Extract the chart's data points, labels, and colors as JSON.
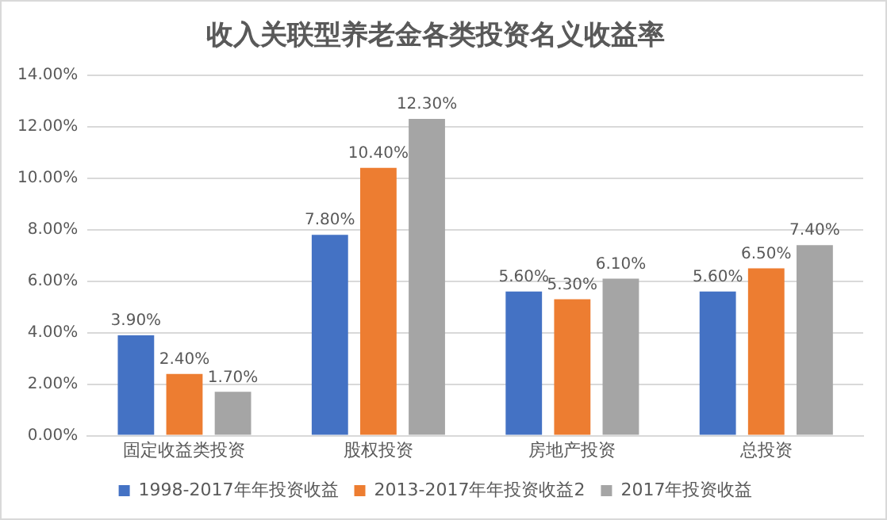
{
  "chart_data": {
    "type": "bar",
    "title": "收入关联型养老金各类投资名义收益率",
    "categories": [
      "固定收益类投资",
      "股权投资",
      "房地产投资",
      "总投资"
    ],
    "series": [
      {
        "name": "1998-2017年年投资收益",
        "color": "#4472c4",
        "values": [
          3.9,
          7.8,
          5.6,
          5.6
        ],
        "value_labels": [
          "3.90%",
          "7.80%",
          "5.60%",
          "5.60%"
        ]
      },
      {
        "name": "2013-2017年年投资收益2",
        "color": "#ed7d31",
        "values": [
          2.4,
          10.4,
          5.3,
          6.5
        ],
        "value_labels": [
          "2.40%",
          "10.40%",
          "5.30%",
          "6.50%"
        ]
      },
      {
        "name": "2017年投资收益",
        "color": "#a5a5a5",
        "values": [
          1.7,
          12.3,
          6.1,
          7.4
        ],
        "value_labels": [
          "1.70%",
          "12.30%",
          "6.10%",
          "7.40%"
        ]
      }
    ],
    "ylim": [
      0,
      14
    ],
    "yticks": [
      {
        "value": 0,
        "label": "0.00%"
      },
      {
        "value": 2,
        "label": "2.00%"
      },
      {
        "value": 4,
        "label": "4.00%"
      },
      {
        "value": 6,
        "label": "6.00%"
      },
      {
        "value": 8,
        "label": "8.00%"
      },
      {
        "value": 10,
        "label": "10.00%"
      },
      {
        "value": 12,
        "label": "12.00%"
      },
      {
        "value": 14,
        "label": "14.00%"
      }
    ],
    "grid": "y",
    "legend": "bottom"
  }
}
